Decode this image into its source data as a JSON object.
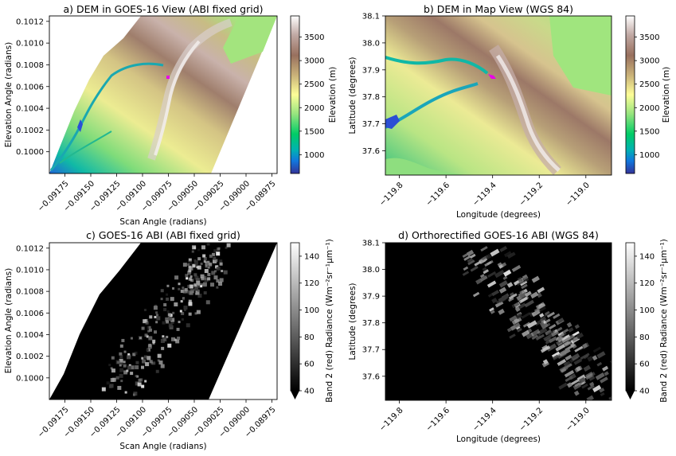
{
  "chart_data": [
    {
      "type": "heatmap",
      "title": "a) DEM in GOES-16 View (ABI fixed grid)",
      "xlabel": "Scan Angle (radians)",
      "ylabel": "Elevation Angle (radians)",
      "xlim": [
        -0.0919,
        -0.0897
      ],
      "ylim": [
        0.0998,
        0.10125
      ],
      "xticks": [
        "−0.09175",
        "−0.09150",
        "−0.09125",
        "−0.09100",
        "−0.09075",
        "−0.09050",
        "−0.09025",
        "−0.09000",
        "−0.08975"
      ],
      "xtick_values": [
        -0.09175,
        -0.0915,
        -0.09125,
        -0.091,
        -0.09075,
        -0.0905,
        -0.09025,
        -0.09,
        -0.08975
      ],
      "yticks": [
        "0.1000",
        "0.1002",
        "0.1004",
        "0.1006",
        "0.1008",
        "0.1010",
        "0.1012"
      ],
      "ytick_values": [
        0.1,
        0.1002,
        0.1004,
        0.1006,
        0.1008,
        0.101,
        0.1012
      ],
      "colormap": "terrain",
      "colorbar": {
        "label": "Elevation (m)",
        "range": [
          600,
          3950
        ],
        "ticks": [
          1000,
          1500,
          2000,
          2500,
          3000,
          3500
        ],
        "tick_labels": [
          "1000",
          "1500",
          "2000",
          "2500",
          "3000",
          "3500"
        ]
      },
      "marker_color": "#e800e8"
    },
    {
      "type": "heatmap",
      "title": "b) DEM in Map View (WGS 84)",
      "xlabel": "Longitude (degrees)",
      "ylabel": "Latitude (degrees)",
      "xlim": [
        -119.86,
        -118.89
      ],
      "ylim": [
        37.51,
        38.1
      ],
      "xticks": [
        "−119.8",
        "−119.6",
        "−119.4",
        "−119.2",
        "−119.0"
      ],
      "xtick_values": [
        -119.8,
        -119.6,
        -119.4,
        -119.2,
        -119.0
      ],
      "yticks": [
        "37.6",
        "37.7",
        "37.8",
        "37.9",
        "38.0",
        "38.1"
      ],
      "ytick_values": [
        37.6,
        37.7,
        37.8,
        37.9,
        38.0,
        38.1
      ],
      "colormap": "terrain",
      "colorbar": {
        "label": "Elevation (m)",
        "range": [
          600,
          3950
        ],
        "ticks": [
          1000,
          1500,
          2000,
          2500,
          3000,
          3500
        ],
        "tick_labels": [
          "1000",
          "1500",
          "2000",
          "2500",
          "3000",
          "3500"
        ]
      },
      "marker_color": "#e800e8"
    },
    {
      "type": "heatmap",
      "title": "c) GOES-16 ABI (ABI fixed grid)",
      "xlabel": "Scan Angle (radians)",
      "ylabel": "Elevation Angle (radians)",
      "xlim": [
        -0.0919,
        -0.0897
      ],
      "ylim": [
        0.0998,
        0.10125
      ],
      "xticks": [
        "−0.09175",
        "−0.09150",
        "−0.09125",
        "−0.09100",
        "−0.09075",
        "−0.09050",
        "−0.09025",
        "−0.09000",
        "−0.08975"
      ],
      "xtick_values": [
        -0.09175,
        -0.0915,
        -0.09125,
        -0.091,
        -0.09075,
        -0.0905,
        -0.09025,
        -0.09,
        -0.08975
      ],
      "yticks": [
        "0.1000",
        "0.1002",
        "0.1004",
        "0.1006",
        "0.1008",
        "0.1010",
        "0.1012"
      ],
      "ytick_values": [
        0.1,
        0.1002,
        0.1004,
        0.1006,
        0.1008,
        0.101,
        0.1012
      ],
      "colormap": "gray",
      "colorbar": {
        "label": "Band 2 (red) Radiance (Wm⁻²sr⁻¹μm⁻¹)",
        "range": [
          40,
          150
        ],
        "extend": "min",
        "ticks": [
          40,
          60,
          80,
          100,
          120,
          140
        ],
        "tick_labels": [
          "40",
          "60",
          "80",
          "100",
          "120",
          "140"
        ]
      }
    },
    {
      "type": "heatmap",
      "title": "d) Orthorectified GOES-16 ABI (WGS 84)",
      "xlabel": "Longitude (degrees)",
      "ylabel": "Latitude (degrees)",
      "xlim": [
        -119.86,
        -118.89
      ],
      "ylim": [
        37.51,
        38.1
      ],
      "xticks": [
        "−119.8",
        "−119.6",
        "−119.4",
        "−119.2",
        "−119.0"
      ],
      "xtick_values": [
        -119.8,
        -119.6,
        -119.4,
        -119.2,
        -119.0
      ],
      "yticks": [
        "37.6",
        "37.7",
        "37.8",
        "37.9",
        "38.0",
        "38.1"
      ],
      "ytick_values": [
        37.6,
        37.7,
        37.8,
        37.9,
        38.0,
        38.1
      ],
      "colormap": "gray",
      "colorbar": {
        "label": "Band 2 (red) Radiance (Wm⁻²sr⁻¹μm⁻¹)",
        "range": [
          40,
          150
        ],
        "extend": "min",
        "ticks": [
          40,
          60,
          80,
          100,
          120,
          140
        ],
        "tick_labels": [
          "40",
          "60",
          "80",
          "100",
          "120",
          "140"
        ]
      }
    }
  ]
}
